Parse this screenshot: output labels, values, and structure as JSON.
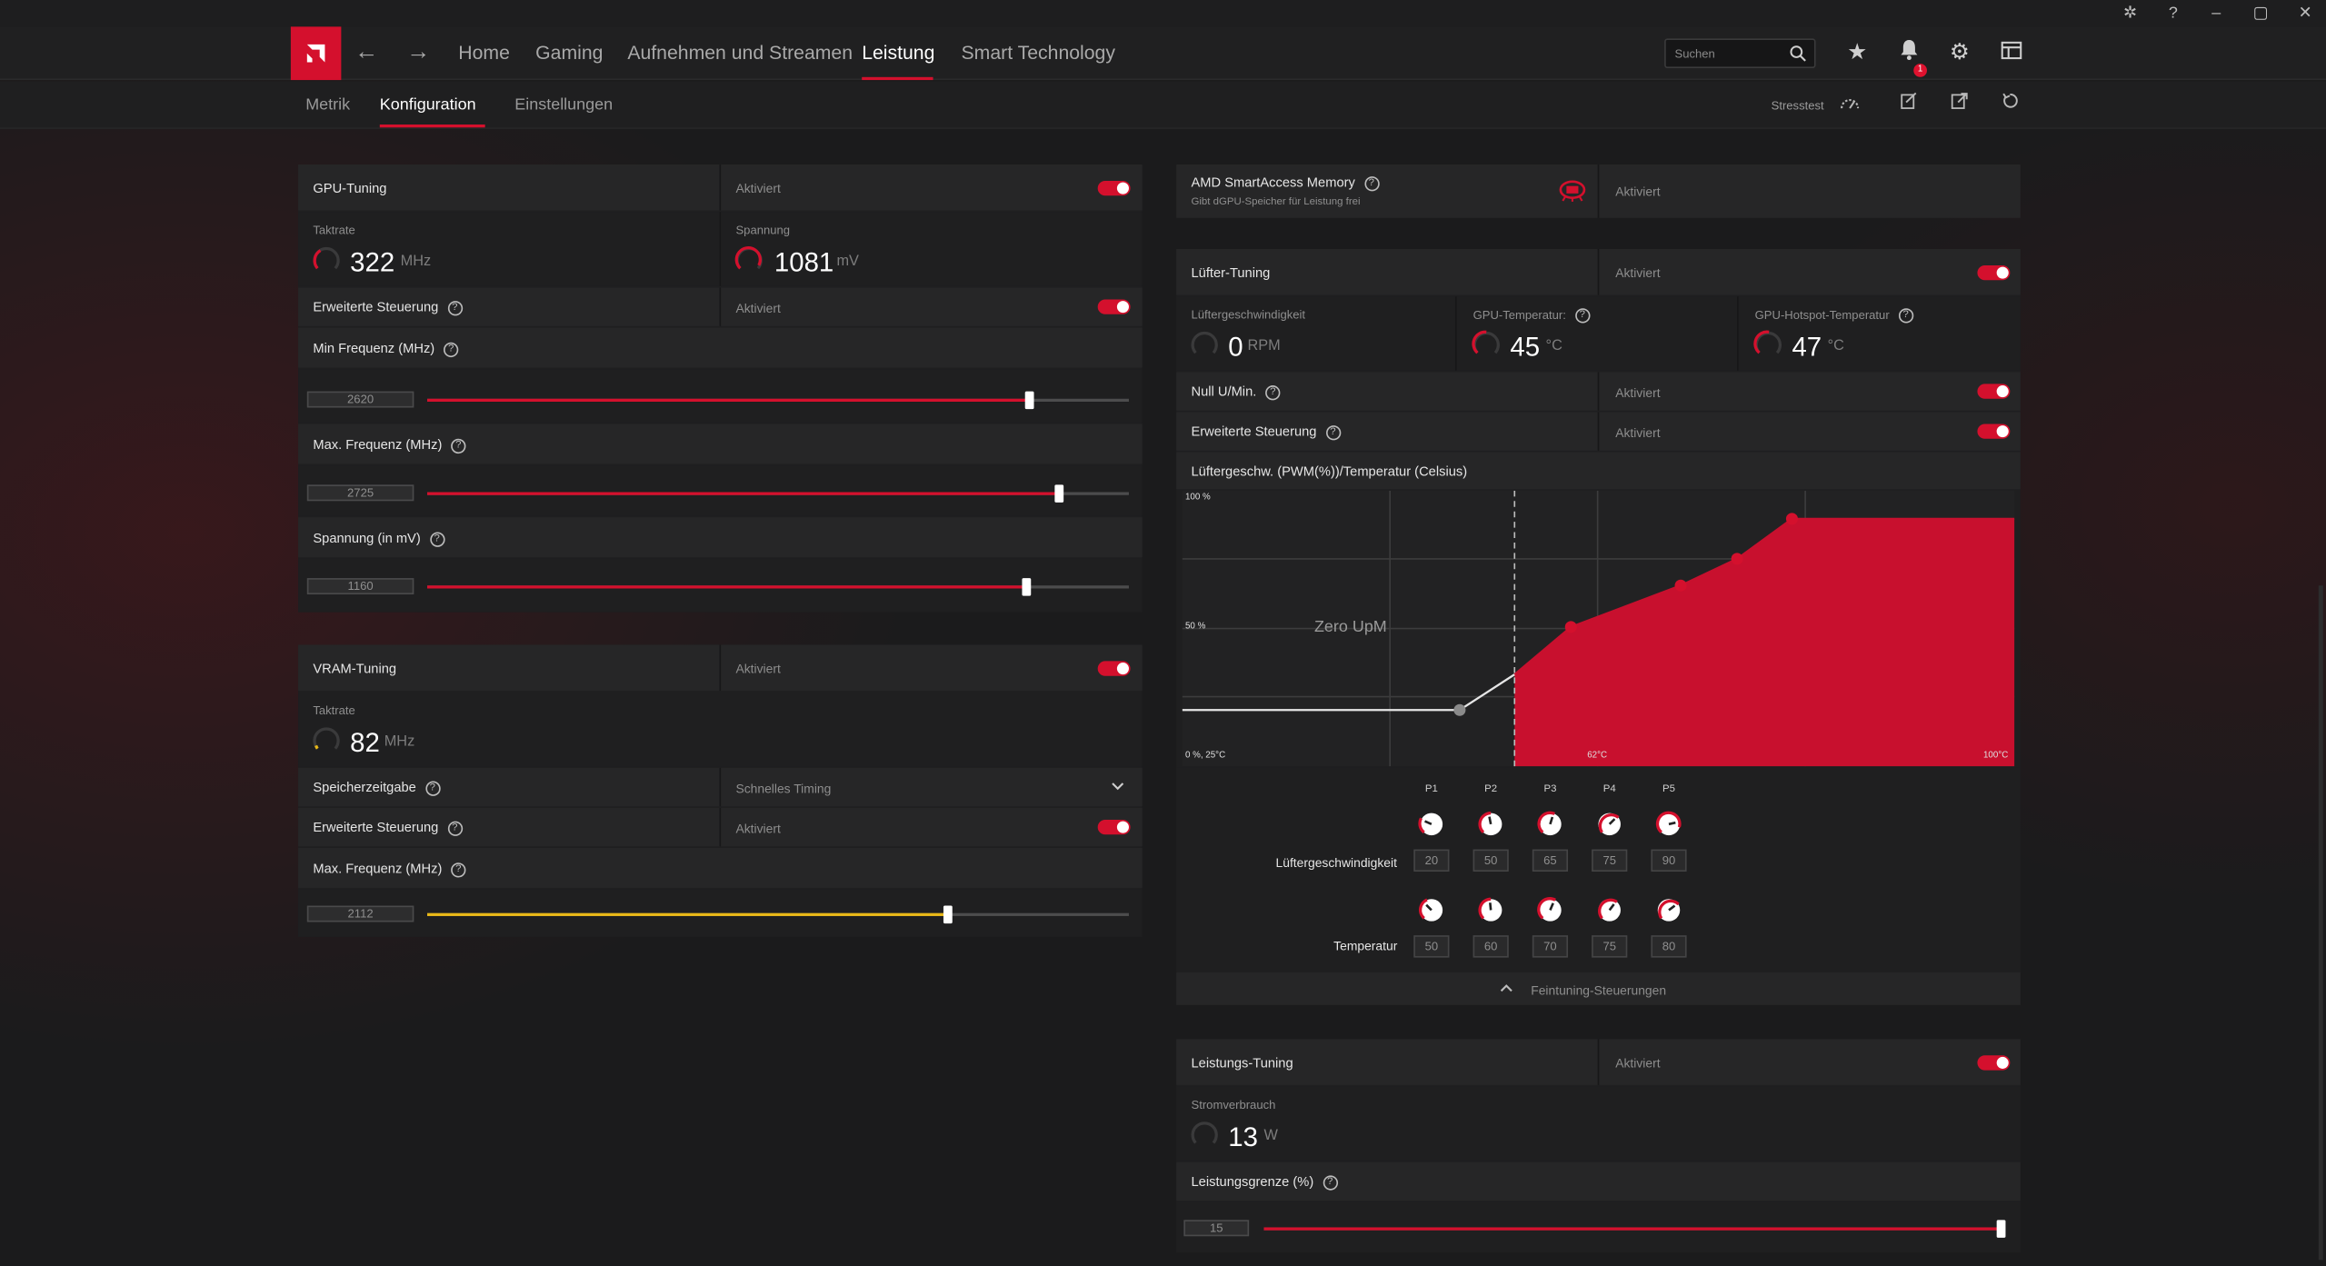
{
  "nav": {
    "items": [
      "Home",
      "Gaming",
      "Aufnehmen und Streamen",
      "Leistung",
      "Smart Technology"
    ],
    "active": "Leistung",
    "search_placeholder": "Suchen",
    "notification_count": "1",
    "icons": [
      "back-arrow-icon",
      "forward-arrow-icon",
      "search-icon",
      "star-icon",
      "bell-icon",
      "gear-icon",
      "layout-icon"
    ]
  },
  "subnav": {
    "items": [
      "Metrik",
      "Konfiguration",
      "Einstellungen"
    ],
    "active": "Konfiguration",
    "stresstest": "Stresstest",
    "icons": [
      "stresstest-gauge-icon",
      "edit-export-icon",
      "share-icon",
      "reset-icon"
    ]
  },
  "gpu_tuning": {
    "title": "GPU-Tuning",
    "status": "Aktiviert",
    "clock_label": "Taktrate",
    "clock_value": "322",
    "clock_unit": "MHz",
    "voltage_label": "Spannung",
    "voltage_value": "1081",
    "voltage_unit": "mV",
    "advanced_label": "Erweiterte Steuerung",
    "advanced_status": "Aktiviert",
    "min_freq_label": "Min Frequenz (MHz)",
    "min_freq_value": "2620",
    "max_freq_label": "Max. Frequenz (MHz)",
    "max_freq_value": "2725",
    "voltage_mv_label": "Spannung (in mV)",
    "voltage_mv_value": "1160",
    "colors": {
      "accent": "#d4102d"
    }
  },
  "vram_tuning": {
    "title": "VRAM-Tuning",
    "status": "Aktiviert",
    "clock_label": "Taktrate",
    "clock_value": "82",
    "clock_unit": "MHz",
    "timing_label": "Speicherzeitgabe",
    "timing_value": "Schnelles Timing",
    "advanced_label": "Erweiterte Steuerung",
    "advanced_status": "Aktiviert",
    "max_freq_label": "Max. Frequenz (MHz)",
    "max_freq_value": "2112",
    "colors": {
      "slider": "#e8b818"
    }
  },
  "sam": {
    "title": "AMD SmartAccess Memory",
    "subtitle": "Gibt dGPU-Speicher für Leistung frei",
    "status": "Aktiviert"
  },
  "fan_tuning": {
    "title": "Lüfter-Tuning",
    "status": "Aktiviert",
    "fan_speed_label": "Lüftergeschwindigkeit",
    "fan_speed_value": "0",
    "fan_speed_unit": "RPM",
    "gpu_temp_label": "GPU-Temperatur:",
    "gpu_temp_value": "45",
    "gpu_temp_unit": "°C",
    "hotspot_label": "GPU-Hotspot-Temperatur",
    "hotspot_value": "47",
    "hotspot_unit": "°C",
    "zero_rpm_label": "Null U/Min.",
    "zero_rpm_status": "Aktiviert",
    "advanced_label": "Erweiterte Steuerung",
    "advanced_status": "Aktiviert",
    "curve_title": "Lüftergeschw. (PWM(%))/Temperatur (Celsius)",
    "curve_zero_label": "Zero UpM",
    "curve_y_top": "100 %",
    "curve_y_mid": "50 %",
    "curve_origin": "0 %, 25°C",
    "curve_x_mid": "62°C",
    "curve_x_max": "100°C",
    "speed_row_label": "Lüftergeschwindigkeit",
    "temp_row_label": "Temperatur",
    "points": [
      {
        "name": "P1",
        "speed": "20",
        "temp": "50"
      },
      {
        "name": "P2",
        "speed": "50",
        "temp": "60"
      },
      {
        "name": "P3",
        "speed": "65",
        "temp": "70"
      },
      {
        "name": "P4",
        "speed": "75",
        "temp": "75"
      },
      {
        "name": "P5",
        "speed": "90",
        "temp": "80"
      }
    ],
    "finetune_label": "Feintuning-Steuerungen"
  },
  "power_tuning": {
    "title": "Leistungs-Tuning",
    "status": "Aktiviert",
    "power_label": "Stromverbrauch",
    "power_value": "13",
    "power_unit": "W",
    "limit_label": "Leistungsgrenze (%)",
    "limit_value": "15"
  }
}
